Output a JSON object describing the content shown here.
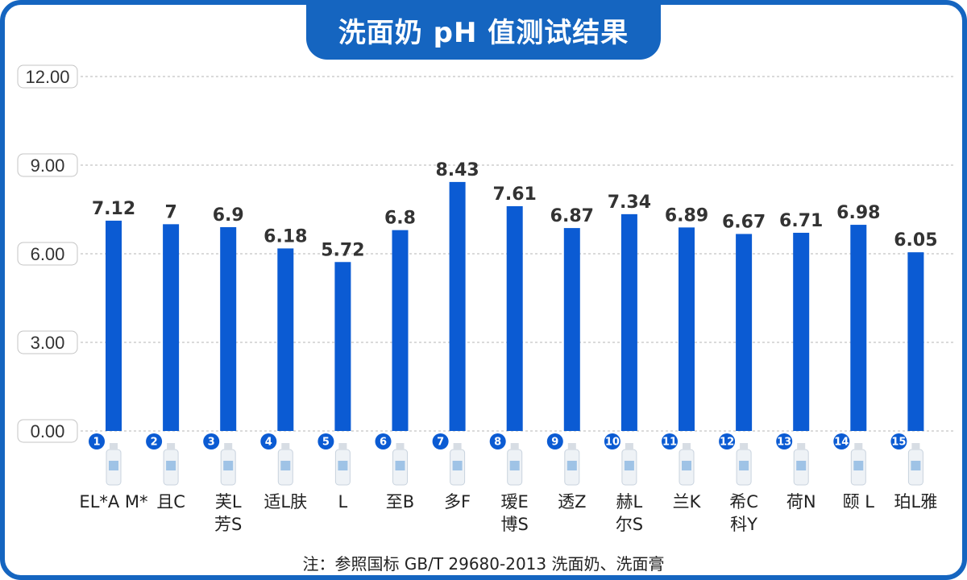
{
  "title": "洗面奶 pH 值测试结果",
  "footnote": "注：参照国标 GB/T 29680-2013 洗面奶、洗面膏",
  "colors": {
    "bar": "#0b5bd3",
    "accent": "#1565c0"
  },
  "chart_data": {
    "type": "bar",
    "categories": [
      [
        "EL*A M*"
      ],
      [
        "且C"
      ],
      [
        "芙L",
        "芳S"
      ],
      [
        "适L肤"
      ],
      [
        "L"
      ],
      [
        "至B"
      ],
      [
        "多F"
      ],
      [
        "瑷E",
        "博S"
      ],
      [
        "透Z"
      ],
      [
        "赫L",
        "尔S"
      ],
      [
        "兰K"
      ],
      [
        "希C",
        "科Y"
      ],
      [
        "荷N"
      ],
      [
        "颐 L"
      ],
      [
        "珀L雅"
      ]
    ],
    "badges": [
      "1",
      "2",
      "3",
      "4",
      "5",
      "6",
      "7",
      "8",
      "9",
      "10",
      "11",
      "12",
      "13",
      "14",
      "15"
    ],
    "values": [
      7.12,
      7,
      6.9,
      6.18,
      5.72,
      6.8,
      8.43,
      7.61,
      6.87,
      7.34,
      6.89,
      6.67,
      6.71,
      6.98,
      6.05
    ],
    "value_labels": [
      "7.12",
      "7",
      "6.9",
      "6.18",
      "5.72",
      "6.8",
      "8.43",
      "7.61",
      "6.87",
      "7.34",
      "6.89",
      "6.67",
      "6.71",
      "6.98",
      "6.05"
    ],
    "y_ticks": [
      "0.00",
      "3.00",
      "6.00",
      "9.00",
      "12.00"
    ],
    "ylim": [
      0,
      12
    ],
    "grid": true
  }
}
